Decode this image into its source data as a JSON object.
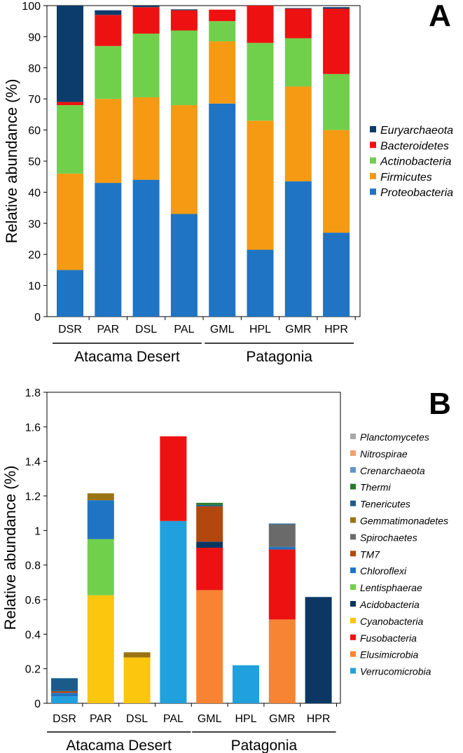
{
  "chart_data": [
    {
      "type": "stacked-bar",
      "panel_label": "A",
      "ylabel": "Relative abundance (%)",
      "ylim": [
        0,
        100
      ],
      "yticks": [
        0,
        10,
        20,
        30,
        40,
        50,
        60,
        70,
        80,
        90,
        100
      ],
      "categories": [
        "DSR",
        "PAR",
        "DSL",
        "PAL",
        "GML",
        "HPL",
        "GMR",
        "HPR"
      ],
      "groups": [
        {
          "label": "Atacama Desert",
          "range": [
            0,
            3
          ]
        },
        {
          "label": "Patagonia",
          "range": [
            4,
            7
          ]
        }
      ],
      "series": [
        {
          "name": "Proteobacteria",
          "color": "#1f74c4",
          "values": [
            15,
            43,
            44,
            33,
            68.5,
            21.5,
            43.5,
            27
          ]
        },
        {
          "name": "Firmicutes",
          "color": "#f59a12",
          "values": [
            31,
            27,
            26.5,
            35,
            20,
            41.5,
            30.5,
            33
          ]
        },
        {
          "name": "Actinobacteria",
          "color": "#71d04b",
          "values": [
            22,
            17,
            20.5,
            24,
            6.5,
            25,
            15.5,
            18
          ]
        },
        {
          "name": "Bacteroidetes",
          "color": "#ee1111",
          "values": [
            1,
            10,
            8.5,
            6.5,
            3.7,
            12,
            9.5,
            21
          ]
        },
        {
          "name": "Euryarchaeota",
          "color": "#0c3c6c",
          "values": [
            31,
            1.5,
            0.5,
            0.3,
            0,
            0,
            0.2,
            0.5
          ]
        }
      ]
    },
    {
      "type": "stacked-bar",
      "panel_label": "B",
      "ylabel": "Relative abundance (%)",
      "ylim": [
        0,
        1.8
      ],
      "yticks": [
        "0",
        "0.2",
        "0.4",
        "0.6",
        "0.8",
        "1",
        "1.2",
        "1.4",
        "1.6",
        "1.8"
      ],
      "categories": [
        "DSR",
        "PAR",
        "DSL",
        "PAL",
        "GML",
        "HPL",
        "GMR",
        "HPR"
      ],
      "groups": [
        {
          "label": "Atacama Desert",
          "range": [
            0,
            3
          ]
        },
        {
          "label": "Patagonia",
          "range": [
            4,
            7
          ]
        }
      ],
      "series": [
        {
          "name": "Verrucomicrobia",
          "color": "#20a0dc",
          "values": [
            0.04,
            0,
            0,
            1.055,
            0,
            0.22,
            0,
            0
          ]
        },
        {
          "name": "Elusimicrobia",
          "color": "#f78433",
          "values": [
            0,
            0,
            0,
            0,
            0.655,
            0,
            0.485,
            0
          ]
        },
        {
          "name": "Fusobacteria",
          "color": "#ee1111",
          "values": [
            0,
            0,
            0,
            0.49,
            0.245,
            0,
            0.405,
            0
          ]
        },
        {
          "name": "Cyanobacteria",
          "color": "#fcc50e",
          "values": [
            0,
            0.625,
            0.265,
            0,
            0,
            0,
            0,
            0
          ]
        },
        {
          "name": "Acidobacteria",
          "color": "#0c3763",
          "values": [
            0,
            0,
            0,
            0,
            0.035,
            0,
            0,
            0.615
          ]
        },
        {
          "name": "Lentisphaerae",
          "color": "#71d04b",
          "values": [
            0,
            0.325,
            0,
            0,
            0,
            0,
            0,
            0
          ]
        },
        {
          "name": "Chloroflexi",
          "color": "#1f74c4",
          "values": [
            0.02,
            0.225,
            0,
            0,
            0,
            0,
            0.015,
            0
          ]
        },
        {
          "name": "TM7",
          "color": "#b2480e",
          "values": [
            0.01,
            0,
            0,
            0,
            0.205,
            0,
            0,
            0
          ]
        },
        {
          "name": "Spirochaetes",
          "color": "#6a6a6a",
          "values": [
            0,
            0,
            0,
            0,
            0,
            0,
            0.13,
            0
          ]
        },
        {
          "name": "Gemmatimonadetes",
          "color": "#9a7313",
          "values": [
            0,
            0.04,
            0.03,
            0,
            0,
            0,
            0,
            0
          ]
        },
        {
          "name": "Tenericutes",
          "color": "#195c8c",
          "values": [
            0.075,
            0,
            0,
            0,
            0.008,
            0,
            0.005,
            0
          ]
        },
        {
          "name": "Thermi",
          "color": "#2a7a2a",
          "values": [
            0,
            0,
            0,
            0,
            0.012,
            0,
            0,
            0
          ]
        },
        {
          "name": "Crenarchaeota",
          "color": "#5c95cc",
          "values": [
            0,
            0,
            0,
            0,
            0,
            0,
            0,
            0
          ]
        },
        {
          "name": "Nitrospirae",
          "color": "#f2a072",
          "values": [
            0,
            0,
            0,
            0,
            0,
            0,
            0,
            0
          ]
        },
        {
          "name": "Planctomycetes",
          "color": "#a8a8a8",
          "values": [
            0,
            0,
            0,
            0,
            0,
            0,
            0,
            0
          ]
        }
      ]
    }
  ]
}
